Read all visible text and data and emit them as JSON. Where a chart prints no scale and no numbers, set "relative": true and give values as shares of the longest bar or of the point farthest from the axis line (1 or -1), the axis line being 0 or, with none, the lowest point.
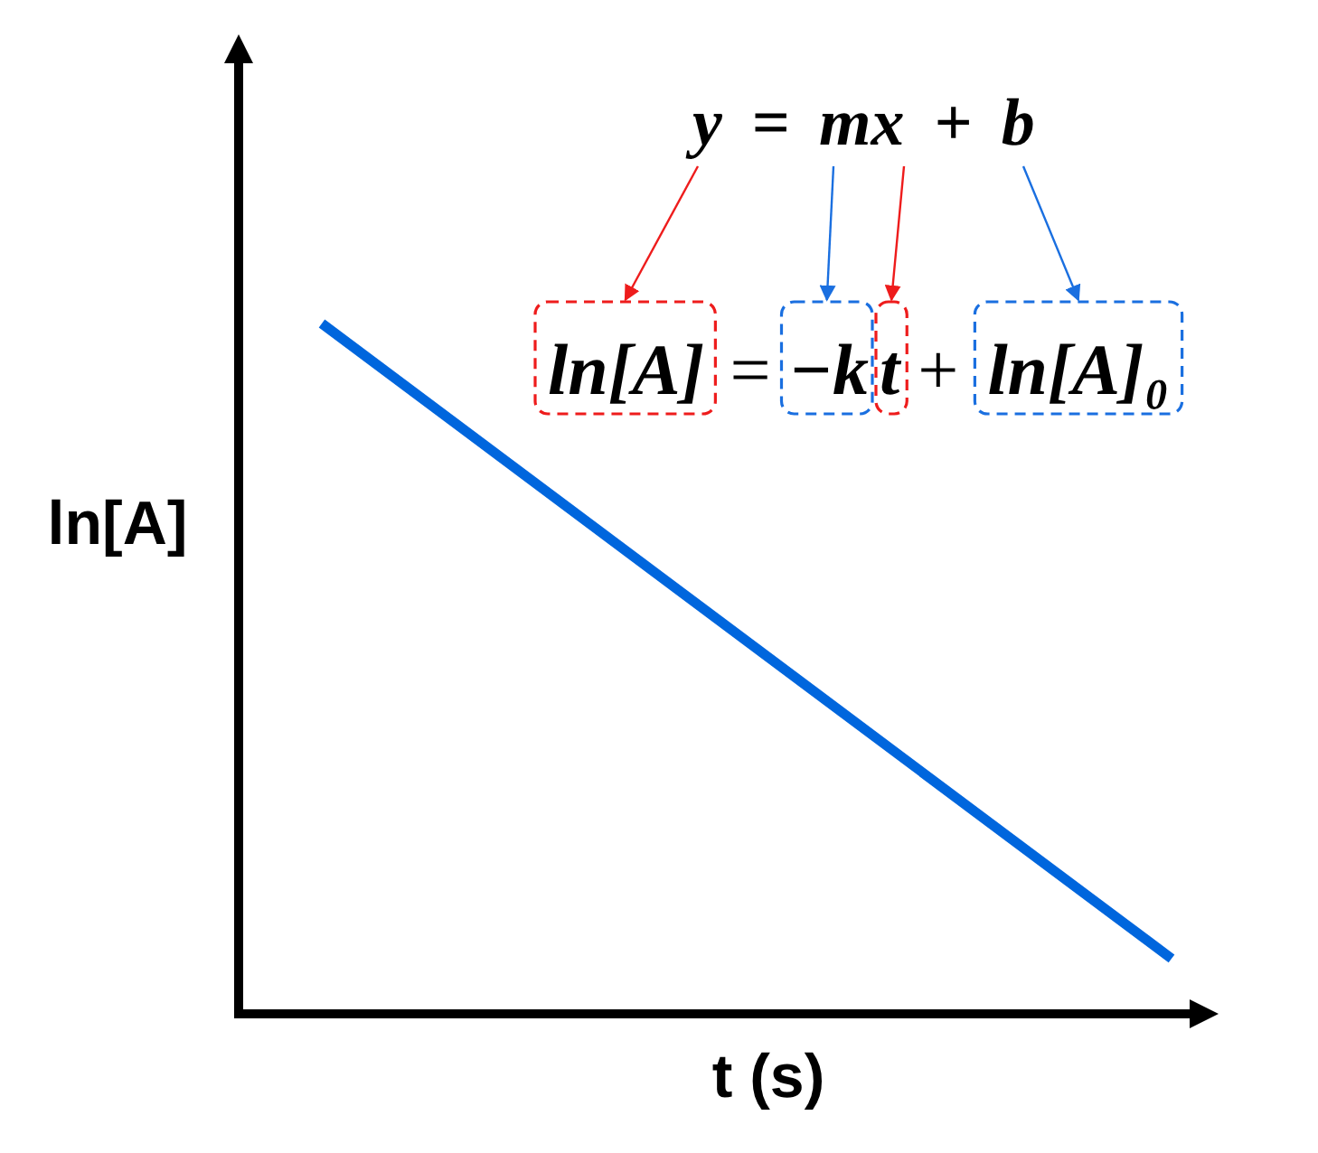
{
  "chart_data": {
    "type": "line",
    "relative": true,
    "categories": [
      null,
      null
    ],
    "values": [
      1,
      0.08
    ],
    "color": "#0066dd",
    "line_style": "solid",
    "xlabel": "t (s)",
    "ylabel": "ln[A]",
    "annotations": [
      "y = mx + b",
      "ln[A]",
      "=",
      "−k",
      "t",
      "+",
      "ln[A]₀"
    ]
  }
}
